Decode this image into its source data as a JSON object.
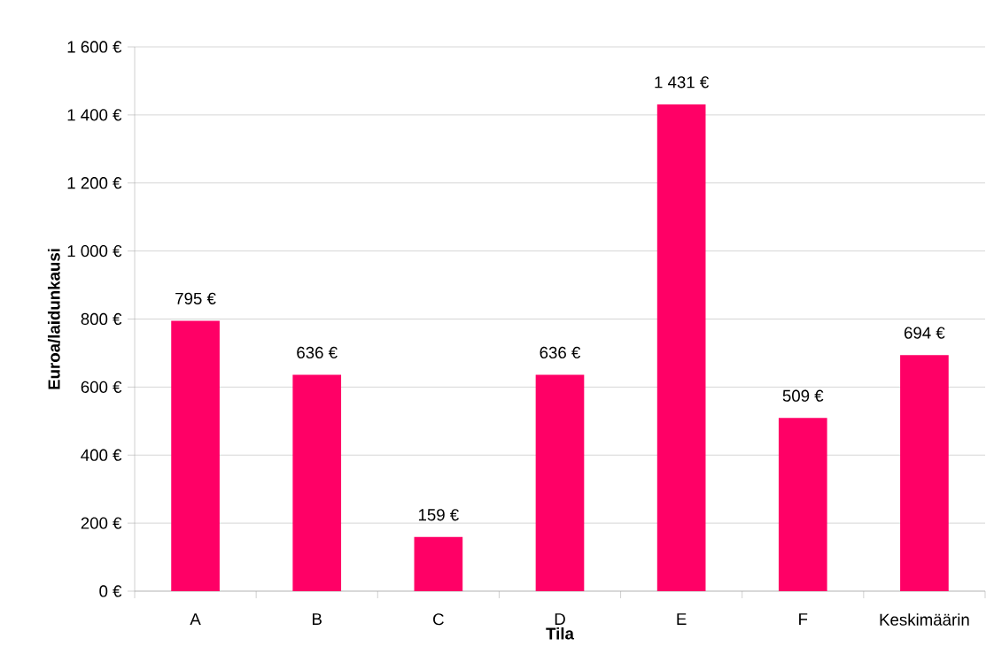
{
  "chart_data": {
    "type": "bar",
    "xlabel": "Tila",
    "ylabel": "Euroa/laidunkausi",
    "categories": [
      "A",
      "B",
      "C",
      "D",
      "E",
      "F",
      "Keskimäärin"
    ],
    "values": [
      795,
      636,
      159,
      636,
      1431,
      509,
      694
    ],
    "value_labels": [
      "795 €",
      "636 €",
      "159 €",
      "636 €",
      "1 431 €",
      "509 €",
      "694 €"
    ],
    "color": "#ff0066",
    "ylim": [
      0,
      1600
    ],
    "yticks": [
      {
        "value": 0,
        "label": "0 €"
      },
      {
        "value": 200,
        "label": "200 €"
      },
      {
        "value": 400,
        "label": "400 €"
      },
      {
        "value": 600,
        "label": "600 €"
      },
      {
        "value": 800,
        "label": "800 €"
      },
      {
        "value": 1000,
        "label": "1 000 €"
      },
      {
        "value": 1200,
        "label": "1 200 €"
      },
      {
        "value": 1400,
        "label": "1 400 €"
      },
      {
        "value": 1600,
        "label": "1 600 €"
      }
    ],
    "grid": "y"
  }
}
